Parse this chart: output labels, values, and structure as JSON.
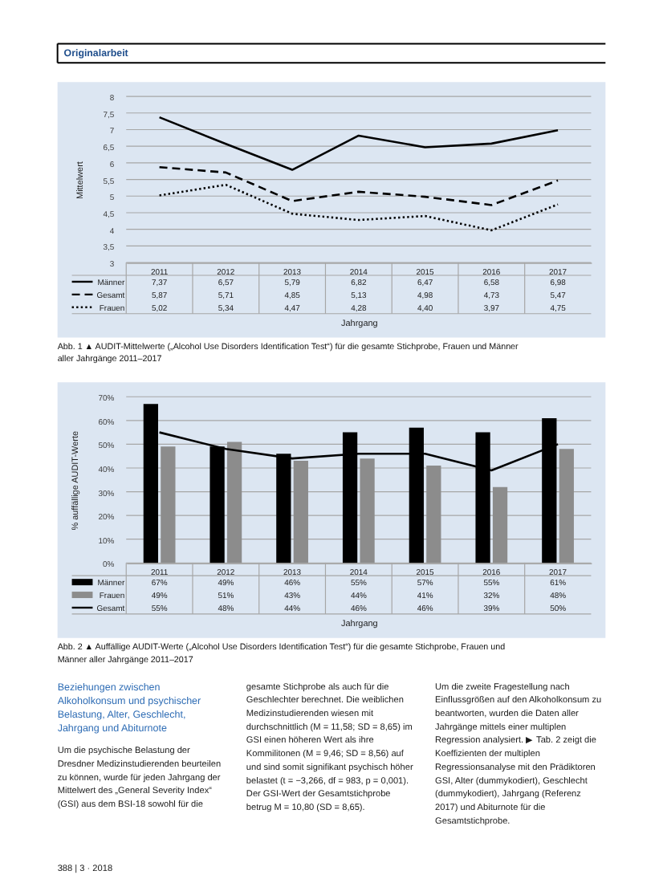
{
  "chart_data": [
    {
      "type": "other",
      "title": "Originalarbeit"
    },
    {
      "type": "line",
      "categories": [
        "2011",
        "2012",
        "2013",
        "2014",
        "2015",
        "2016",
        "2017"
      ],
      "xlabel": "Jahrgang",
      "ylabel": "Mittelwert",
      "ylim": [
        3,
        8
      ],
      "yticks": [
        3,
        {
          "value": 3.5,
          "label": "3,5"
        },
        4,
        {
          "value": 4.5,
          "label": "4,5"
        },
        5,
        {
          "value": 5.5,
          "label": "5,5"
        },
        6,
        {
          "value": 6.5,
          "label": "6,5"
        },
        7,
        {
          "value": 7.5,
          "label": "7,5"
        },
        8
      ],
      "grid": "y",
      "legend": "bottom",
      "series": [
        {
          "name": "Männer",
          "color": "#000000",
          "line_style": "solid",
          "values": [
            7.37,
            6.57,
            5.79,
            6.82,
            6.47,
            6.58,
            6.98
          ],
          "value_labels": [
            "7,37",
            "6,57",
            "5,79",
            "6,82",
            "6,47",
            "6,58",
            "6,98"
          ]
        },
        {
          "name": "Gesamt",
          "color": "#000000",
          "line_style": "dashed",
          "values": [
            5.87,
            5.71,
            4.85,
            5.13,
            4.98,
            4.73,
            5.47
          ],
          "value_labels": [
            "5,87",
            "5,71",
            "4,85",
            "5,13",
            "4,98",
            "4,73",
            "5,47"
          ]
        },
        {
          "name": "Frauen",
          "color": "#000000",
          "line_style": "dotted",
          "values": [
            5.02,
            5.34,
            4.47,
            4.28,
            4.4,
            3.97,
            4.75
          ],
          "value_labels": [
            "5,02",
            "5,34",
            "4,47",
            "4,28",
            "4,40",
            "3,97",
            "4,75"
          ]
        }
      ],
      "annotations": [
        "Abb. 1 ▲ AUDIT-Mittelwerte („Alcohol Use Disorders Identification Test“) für die gesamte Stichprobe, Frauen und Männer aller Jahrgänge 2011–2017"
      ]
    },
    {
      "type": "bar",
      "categories": [
        "2011",
        "2012",
        "2013",
        "2014",
        "2015",
        "2016",
        "2017"
      ],
      "xlabel": "Jahrgang",
      "ylabel": "% auffällige AUDIT-Werte",
      "ylim": [
        0,
        70
      ],
      "yticks": [
        {
          "value": 0,
          "label": "0%"
        },
        {
          "value": 10,
          "label": "10%"
        },
        {
          "value": 20,
          "label": "20%"
        },
        {
          "value": 30,
          "label": "30%"
        },
        {
          "value": 40,
          "label": "40%"
        },
        {
          "value": 50,
          "label": "50%"
        },
        {
          "value": 60,
          "label": "60%"
        },
        {
          "value": 70,
          "label": "70%"
        }
      ],
      "grid": "y",
      "legend": "bottom",
      "series": [
        {
          "name": "Männer",
          "color": "#000000",
          "values": [
            67,
            49,
            46,
            55,
            57,
            55,
            61
          ],
          "value_labels": [
            "67%",
            "49%",
            "46%",
            "55%",
            "57%",
            "55%",
            "61%"
          ]
        },
        {
          "name": "Frauen",
          "color": "#8c8c8c",
          "values": [
            49,
            51,
            43,
            44,
            41,
            32,
            48
          ],
          "value_labels": [
            "49%",
            "51%",
            "43%",
            "44%",
            "41%",
            "32%",
            "48%"
          ]
        },
        {
          "name": "Gesamt",
          "type": "line",
          "line_style": "solid",
          "color": "#000000",
          "values": [
            55,
            48,
            44,
            46,
            46,
            39,
            50
          ],
          "value_labels": [
            "55%",
            "48%",
            "44%",
            "46%",
            "46%",
            "39%",
            "50%"
          ]
        }
      ],
      "annotations": [
        "Abb. 2 ▲ Auffällige AUDIT-Werte („Alcohol Use Disorders Identification Test“) für die gesamte Stichprobe, Frauen und Männer aller Jahrgänge 2011–2017"
      ]
    },
    {
      "type": "other",
      "title": "Beziehungen zwischen Alkoholkonsum und psychischer Belastung, Alter, Geschlecht, Jahrgang und Abiturnote",
      "annotations": [
        "Um die psychische Belastung der Dresdner Medizinstudierenden beurteilen zu können, wurde für jeden Jahrgang der Mittelwert des „General Severity Index“ (GSI) aus dem BSI-18 sowohl für die",
        "gesamte Stichprobe als auch für die Geschlechter berechnet. Die weiblichen Medizinstudierenden wiesen mit durchschnittlich (M = 11,58; SD = 8,65) im GSI einen höheren Wert als ihre Kommilitonen (M = 9,46; SD = 8,56) auf und sind somit signifikant psychisch höher belastet (t = −3,266, df = 983, p = 0,001). Der GSI-Wert der Gesamtstichprobe betrug M = 10,80 (SD = 8,65).",
        "Um die zweite Fragestellung nach Einflussgrößen auf den Alkoholkonsum zu beantworten, wurden die Daten aller Jahrgänge mittels einer multiplen Regression analysiert. ▶ Tab. 2 zeigt die Koeffizienten der multiplen Regressionsanalyse mit den Prädiktoren GSI, Alter (dummykodiert), Geschlecht (dummykodiert), Jahrgang (Referenz 2017) und Abiturnote für die Gesamtstichprobe."
      ]
    },
    {
      "type": "other",
      "annotations": [
        "388 | 3 · 2018"
      ]
    }
  ]
}
